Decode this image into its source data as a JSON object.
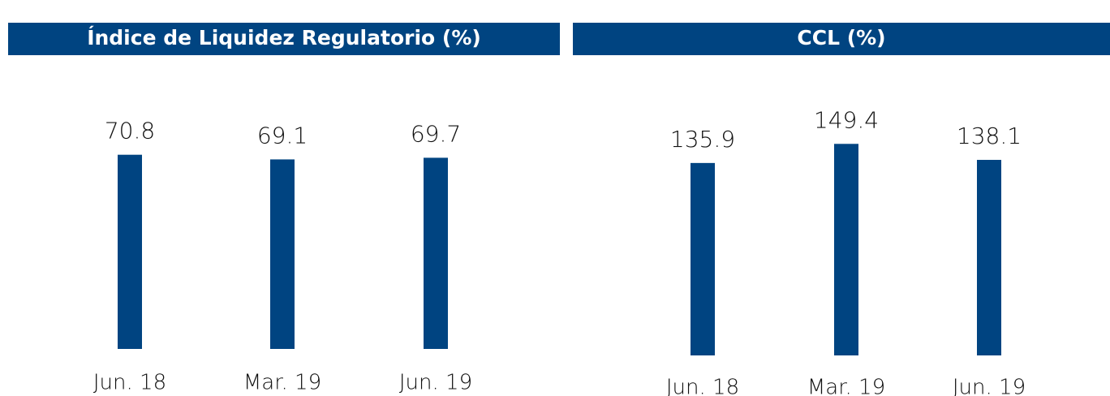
{
  "chart_data": [
    {
      "type": "bar",
      "title": "Índice de Liquidez Regulatorio (%)",
      "categories": [
        "Jun. 18",
        "Mar. 19",
        "Jun. 19"
      ],
      "values": [
        70.8,
        69.1,
        69.7
      ],
      "color": "#004481"
    },
    {
      "type": "bar",
      "title": "CCL (%)",
      "categories": [
        "Jun. 18",
        "Mar. 19",
        "Jun. 19"
      ],
      "values": [
        135.9,
        149.4,
        138.1
      ],
      "color": "#004481"
    }
  ]
}
